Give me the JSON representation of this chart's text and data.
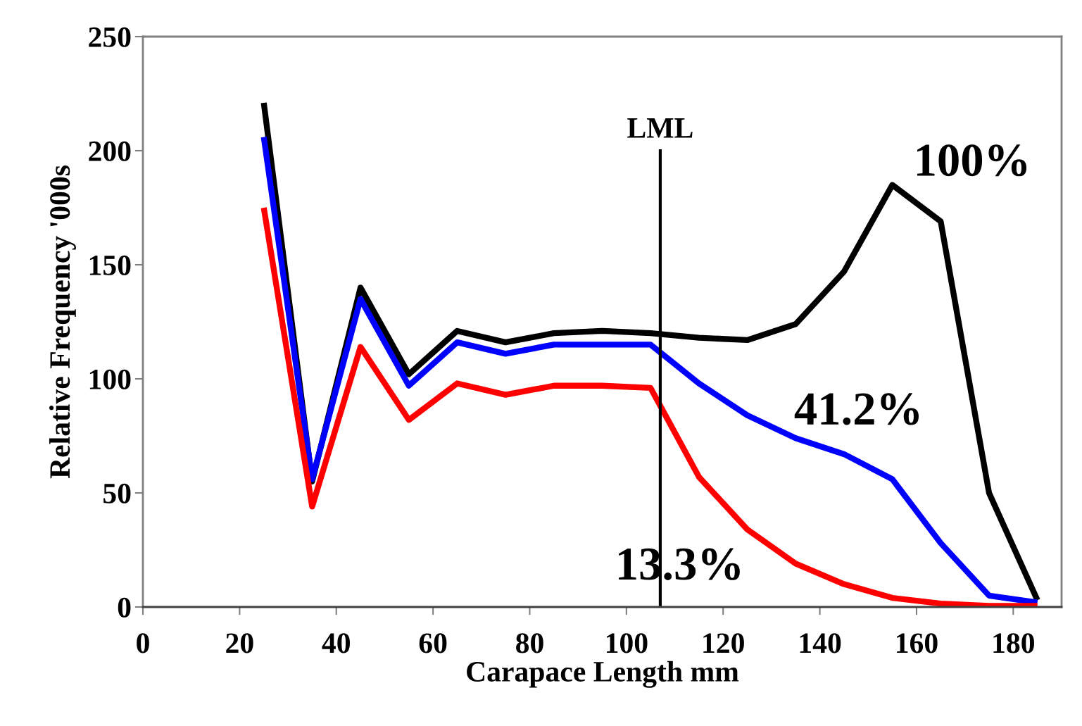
{
  "chart_data": {
    "type": "line",
    "xlabel": "Carapace Length mm",
    "ylabel": "Relative Frequency '000s",
    "x": [
      25,
      35,
      45,
      55,
      65,
      75,
      85,
      95,
      105,
      115,
      125,
      135,
      145,
      155,
      165,
      175,
      185
    ],
    "series": [
      {
        "name": "100%",
        "color": "#000000",
        "values": [
          221,
          55,
          140,
          102,
          121,
          116,
          120,
          121,
          120,
          118,
          117,
          124,
          147,
          185,
          169,
          50,
          3
        ]
      },
      {
        "name": "41.2%",
        "color": "#0000ff",
        "values": [
          206,
          56,
          135,
          97,
          116,
          111,
          115,
          115,
          115,
          98,
          84,
          74,
          67,
          56,
          28,
          5,
          2
        ]
      },
      {
        "name": "13.3%",
        "color": "#ff0000",
        "values": [
          175,
          44,
          114,
          82,
          98,
          93,
          97,
          97,
          96,
          57,
          34,
          19,
          10,
          4,
          1.5,
          0.5,
          0.5
        ]
      }
    ],
    "xlim": [
      0,
      190
    ],
    "xticks": [
      0,
      20,
      40,
      60,
      80,
      100,
      120,
      140,
      160,
      180
    ],
    "ylim": [
      0,
      250
    ],
    "yticks": [
      0,
      50,
      100,
      150,
      200,
      250
    ],
    "ref_lines": [
      {
        "axis": "x",
        "value": 107,
        "label": "LML",
        "color": "#000000"
      }
    ],
    "grid": false,
    "legend": false,
    "marker": "none",
    "line_style": "solid"
  }
}
